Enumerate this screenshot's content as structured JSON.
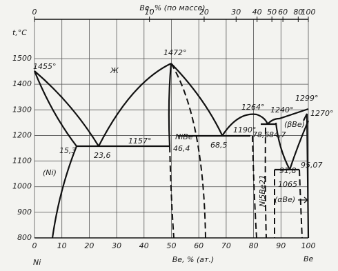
{
  "header": {
    "title": "Be, % (по массе)"
  },
  "top_axis": {
    "ticks": [
      0,
      10,
      20,
      30,
      40,
      50,
      60,
      80,
      100
    ]
  },
  "y_axis": {
    "label": "t,°C",
    "ticks": [
      1500,
      1400,
      1300,
      1200,
      1100,
      1000,
      900,
      800
    ]
  },
  "x_axis": {
    "label": "Be, % (ат.)",
    "ticks": [
      0,
      10,
      20,
      30,
      40,
      50,
      60,
      70,
      80,
      90,
      100
    ],
    "left": "Ni",
    "right": "Be"
  },
  "annotations": [
    "1455°",
    "Ж",
    "1472°",
    "1157°",
    "NiBe",
    "46,4",
    "68,5",
    "15,3",
    "23,6",
    "1190°",
    "78,6",
    "84,7",
    "1264°",
    "1240°",
    "1299°",
    "(βBe)",
    "1270°",
    "(Ni)",
    "91,8",
    "95,07",
    "Ni5Be21",
    "1065",
    "(αBe)"
  ]
}
